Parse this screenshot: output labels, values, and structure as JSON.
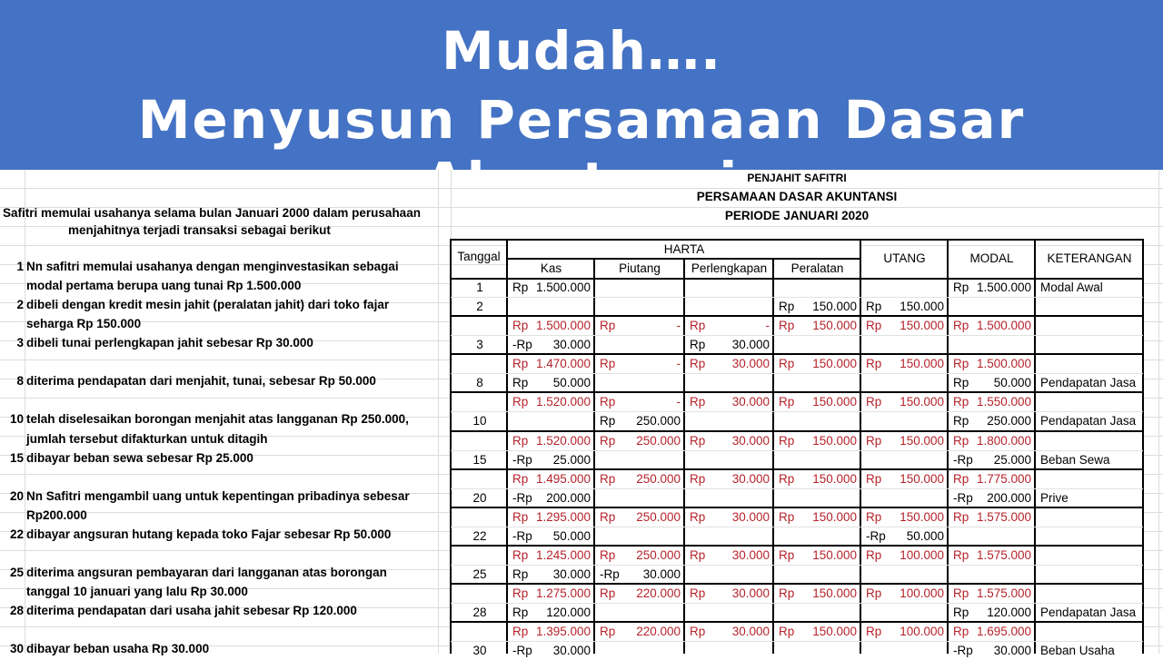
{
  "banner": {
    "line1": "Mudah….",
    "line2": "Menyusun Persamaan Dasar Akuntansi",
    "color": "#4472c4"
  },
  "intro": {
    "line1": "Safitri memulai usahanya selama bulan Januari 2000 dalam perusahaan",
    "line2": "menjahitnya  terjadi transaksi sebagai berikut"
  },
  "titles": {
    "company": "PENJAHIT SAFITRI",
    "report": "PERSAMAAN DASAR AKUNTANSI",
    "period": "PERIODE JANUARI 2020"
  },
  "headers": {
    "tanggal": "Tanggal",
    "harta": "HARTA",
    "kas": "Kas",
    "piutang": "Piutang",
    "perlengkapan": "Perlengkapan",
    "peralatan": "Peralatan",
    "utang": "UTANG",
    "modal": "MODAL",
    "keterangan": "KETERANGAN"
  },
  "transactions": [
    {
      "row": 1,
      "num": "1",
      "text": "Nn safitri memulai usahanya dengan menginvestasikan sebagai"
    },
    {
      "row": 2,
      "num": "",
      "text": "modal pertama berupa uang tunai Rp 1.500.000"
    },
    {
      "row": 3,
      "num": "2",
      "text": "dibeli dengan kredit mesin jahit  (peralatan jahit) dari toko fajar"
    },
    {
      "row": 4,
      "num": "",
      "text": "seharga Rp 150.000"
    },
    {
      "row": 5,
      "num": "3",
      "text": "dibeli tunai perlengkapan jahit sebesar Rp 30.000"
    },
    {
      "row": 7,
      "num": "8",
      "text": "diterima pendapatan dari menjahit, tunai, sebesar Rp 50.000"
    },
    {
      "row": 9,
      "num": "10",
      "text": "telah diselesaikan borongan menjahit atas langganan Rp 250.000,"
    },
    {
      "row": 10,
      "num": "",
      "text": "jumlah tersebut difakturkan untuk ditagih"
    },
    {
      "row": 11,
      "num": "15",
      "text": "dibayar beban sewa sebesar Rp 25.000"
    },
    {
      "row": 13,
      "num": "20",
      "text": "Nn Safitri mengambil uang untuk kepentingan pribadinya sebesar"
    },
    {
      "row": 14,
      "num": "",
      "text": "Rp200.000"
    },
    {
      "row": 15,
      "num": "22",
      "text": "dibayar angsuran hutang kepada toko Fajar sebesar Rp 50.000"
    },
    {
      "row": 17,
      "num": "25",
      "text": "diterima angsuran pembayaran dari langganan atas borongan"
    },
    {
      "row": 18,
      "num": "",
      "text": "tanggal 10 januari yang lalu Rp 30.000"
    },
    {
      "row": 19,
      "num": "28",
      "text": "diterima pendapatan dari usaha jahit sebesar Rp 120.000"
    },
    {
      "row": 21,
      "num": "30",
      "text": "dibayar beban usaha Rp 30.000"
    }
  ],
  "colors": {
    "balance_text": "#b5232b",
    "border": "#000000",
    "gridline": "#dcdcdc"
  },
  "columns": [
    "tanggal",
    "kas",
    "piutang",
    "perlengkapan",
    "peralatan",
    "utang",
    "modal",
    "keterangan"
  ],
  "rows": [
    {
      "balance": false,
      "cells": [
        "1",
        "Rp 1.500.000",
        "",
        "",
        "",
        "",
        "Rp 1.500.000",
        "Modal Awal"
      ]
    },
    {
      "balance": false,
      "cells": [
        "2",
        "",
        "",
        "",
        "Rp 150.000",
        "Rp 150.000",
        "",
        ""
      ]
    },
    {
      "balance": true,
      "cells": [
        "",
        "Rp 1.500.000",
        "Rp -",
        "Rp -",
        "Rp 150.000",
        "Rp 150.000",
        "Rp 1.500.000",
        ""
      ]
    },
    {
      "balance": false,
      "cells": [
        "3",
        "-Rp 30.000",
        "",
        "Rp 30.000",
        "",
        "",
        "",
        ""
      ]
    },
    {
      "balance": true,
      "cells": [
        "",
        "Rp 1.470.000",
        "Rp -",
        "Rp 30.000",
        "Rp 150.000",
        "Rp 150.000",
        "Rp 1.500.000",
        ""
      ]
    },
    {
      "balance": false,
      "cells": [
        "8",
        "Rp 50.000",
        "",
        "",
        "",
        "",
        "Rp 50.000",
        "Pendapatan Jasa"
      ]
    },
    {
      "balance": true,
      "cells": [
        "",
        "Rp 1.520.000",
        "Rp -",
        "Rp 30.000",
        "Rp 150.000",
        "Rp 150.000",
        "Rp 1.550.000",
        ""
      ]
    },
    {
      "balance": false,
      "cells": [
        "10",
        "",
        "Rp 250.000",
        "",
        "",
        "",
        "Rp 250.000",
        "Pendapatan Jasa"
      ]
    },
    {
      "balance": true,
      "cells": [
        "",
        "Rp 1.520.000",
        "Rp 250.000",
        "Rp 30.000",
        "Rp 150.000",
        "Rp 150.000",
        "Rp 1.800.000",
        ""
      ]
    },
    {
      "balance": false,
      "cells": [
        "15",
        "-Rp 25.000",
        "",
        "",
        "",
        "",
        "-Rp 25.000",
        "Beban Sewa"
      ]
    },
    {
      "balance": true,
      "cells": [
        "",
        "Rp 1.495.000",
        "Rp 250.000",
        "Rp 30.000",
        "Rp 150.000",
        "Rp 150.000",
        "Rp 1.775.000",
        ""
      ]
    },
    {
      "balance": false,
      "cells": [
        "20",
        "-Rp 200.000",
        "",
        "",
        "",
        "",
        "-Rp 200.000",
        "Prive"
      ]
    },
    {
      "balance": true,
      "cells": [
        "",
        "Rp 1.295.000",
        "Rp 250.000",
        "Rp 30.000",
        "Rp 150.000",
        "Rp 150.000",
        "Rp 1.575.000",
        ""
      ]
    },
    {
      "balance": false,
      "cells": [
        "22",
        "-Rp 50.000",
        "",
        "",
        "",
        "-Rp 50.000",
        "",
        ""
      ]
    },
    {
      "balance": true,
      "cells": [
        "",
        "Rp 1.245.000",
        "Rp 250.000",
        "Rp 30.000",
        "Rp 150.000",
        "Rp 100.000",
        "Rp 1.575.000",
        ""
      ]
    },
    {
      "balance": false,
      "cells": [
        "25",
        "Rp 30.000",
        "-Rp 30.000",
        "",
        "",
        "",
        "",
        ""
      ]
    },
    {
      "balance": true,
      "cells": [
        "",
        "Rp 1.275.000",
        "Rp 220.000",
        "Rp 30.000",
        "Rp 150.000",
        "Rp 100.000",
        "Rp 1.575.000",
        ""
      ]
    },
    {
      "balance": false,
      "cells": [
        "28",
        "Rp 120.000",
        "",
        "",
        "",
        "",
        "Rp 120.000",
        "Pendapatan Jasa"
      ]
    },
    {
      "balance": true,
      "cells": [
        "",
        "Rp 1.395.000",
        "Rp 220.000",
        "Rp 30.000",
        "Rp 150.000",
        "Rp 100.000",
        "Rp 1.695.000",
        ""
      ]
    },
    {
      "balance": false,
      "cells": [
        "30",
        "-Rp 30.000",
        "",
        "",
        "",
        "",
        "-Rp 30.000",
        "Beban Usaha"
      ]
    }
  ]
}
